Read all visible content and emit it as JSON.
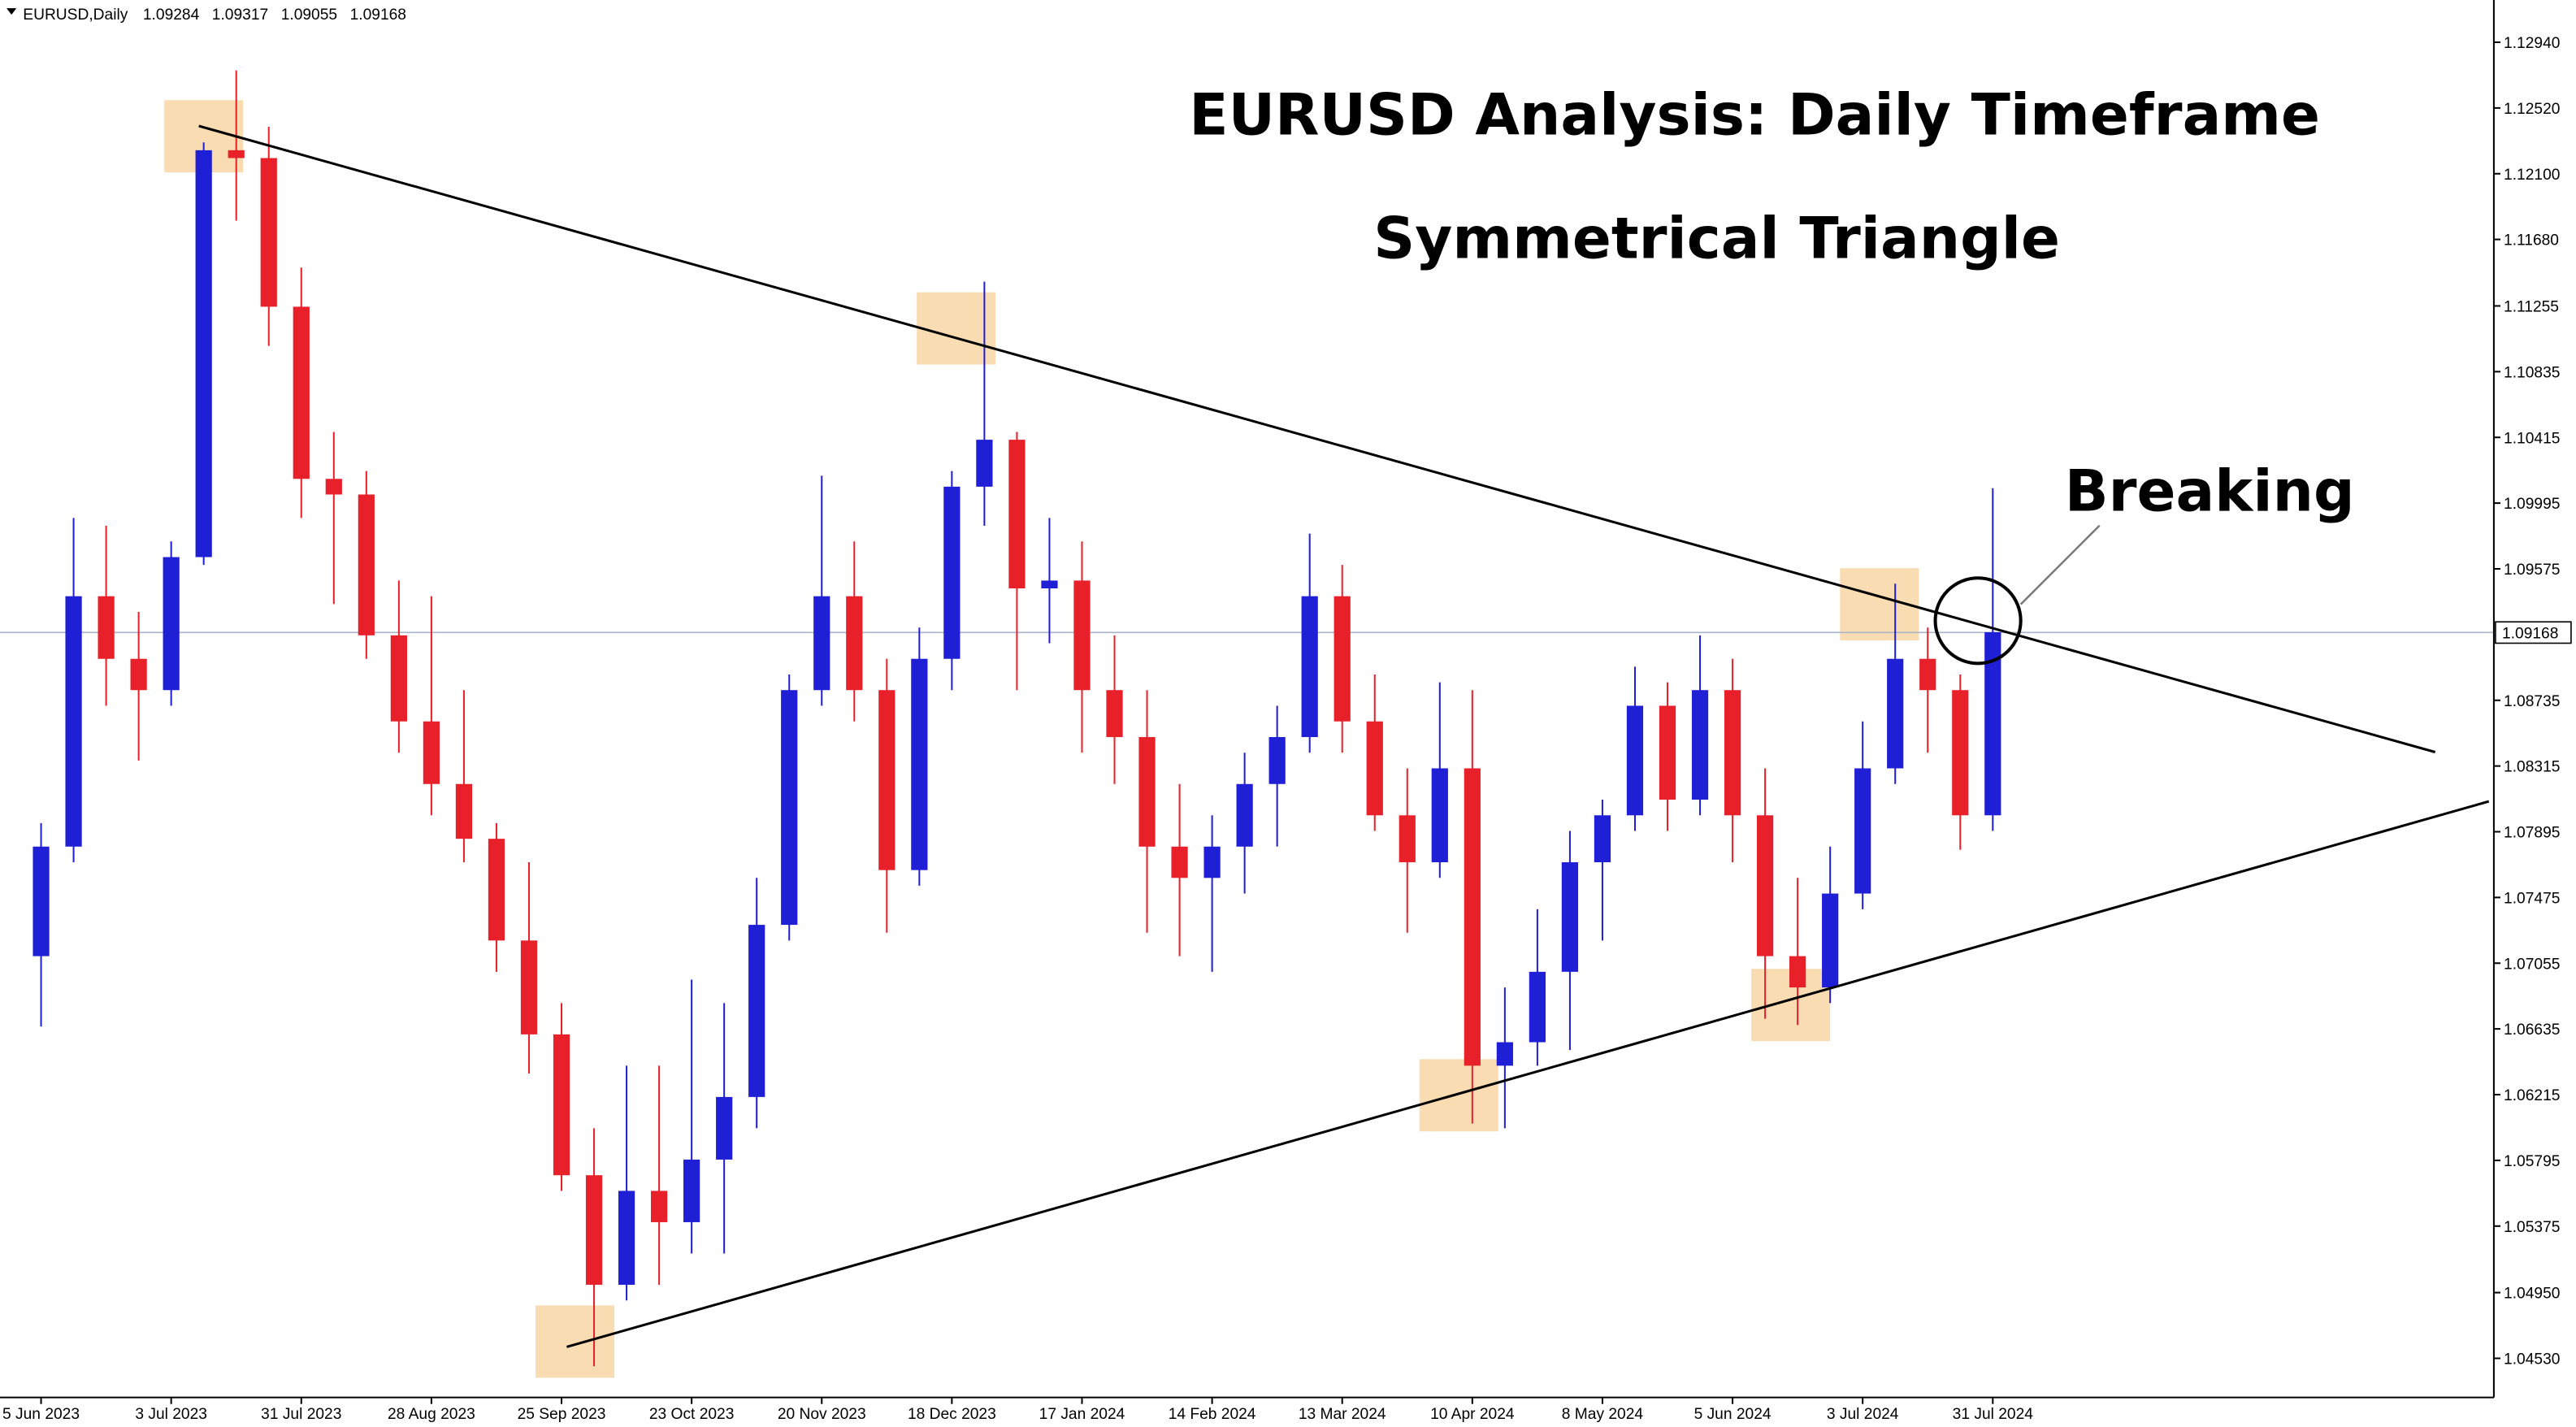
{
  "chart_data": {
    "type": "candlestick",
    "symbol": "EURUSD,Daily",
    "ohlc_header": [
      1.09284,
      1.09317,
      1.09055,
      1.09168
    ],
    "title": "EURUSD Analysis: Daily Timeframe",
    "subtitle": "Symmetrical Triangle",
    "annotation": "Breaking",
    "current_price": 1.09168,
    "bull_color": "#1f1fd6",
    "bear_color": "#e8202a",
    "categories": [
      "5 Jun 2023",
      null,
      null,
      null,
      "3 Jul 2023",
      null,
      null,
      null,
      "31 Jul 2023",
      null,
      null,
      null,
      "28 Aug 2023",
      null,
      null,
      null,
      "25 Sep 2023",
      null,
      null,
      null,
      "23 Oct 2023",
      null,
      null,
      null,
      "20 Nov 2023",
      null,
      null,
      null,
      "18 Dec 2023",
      null,
      null,
      null,
      "17 Jan 2024",
      null,
      null,
      null,
      "14 Feb 2024",
      null,
      null,
      null,
      "13 Mar 2024",
      null,
      null,
      null,
      "10 Apr 2024",
      null,
      null,
      null,
      "8 May 2024",
      null,
      null,
      null,
      "5 Jun 2024",
      null,
      null,
      null,
      "3 Jul 2024",
      null,
      null,
      null,
      "31 Jul 2024"
    ],
    "open": [
      1.071,
      1.078,
      1.094,
      1.09,
      1.088,
      1.0965,
      1.1225,
      1.122,
      1.1125,
      1.1015,
      1.1005,
      1.0915,
      1.086,
      1.082,
      1.0785,
      1.072,
      1.066,
      1.057,
      1.05,
      1.056,
      1.054,
      1.058,
      1.062,
      1.073,
      1.088,
      1.094,
      1.088,
      1.0765,
      1.09,
      1.101,
      1.104,
      1.0945,
      1.095,
      1.088,
      1.085,
      1.078,
      1.076,
      1.078,
      1.082,
      1.085,
      1.094,
      1.086,
      1.08,
      1.077,
      1.083,
      1.064,
      1.0655,
      1.07,
      1.077,
      1.08,
      1.087,
      1.081,
      1.088,
      1.08,
      1.071,
      1.069,
      1.075,
      1.083,
      1.09,
      1.088,
      1.08
    ],
    "high": [
      1.0795,
      1.099,
      1.0985,
      1.093,
      1.0975,
      1.123,
      1.1276,
      1.124,
      1.115,
      1.1045,
      1.102,
      1.095,
      1.094,
      1.088,
      1.0795,
      1.077,
      1.068,
      1.06,
      1.064,
      1.064,
      1.0695,
      1.068,
      1.076,
      1.089,
      1.1017,
      1.0975,
      1.09,
      1.092,
      1.102,
      1.1141,
      1.1045,
      1.099,
      1.0975,
      1.0915,
      1.088,
      1.082,
      1.08,
      1.084,
      1.087,
      1.098,
      1.096,
      1.089,
      1.083,
      1.0885,
      1.088,
      1.069,
      1.074,
      1.079,
      1.081,
      1.0895,
      1.0885,
      1.0915,
      1.09,
      1.083,
      1.076,
      1.078,
      1.086,
      1.0948,
      1.092,
      1.089,
      1.1009
    ],
    "low": [
      1.0665,
      1.077,
      1.087,
      1.0835,
      1.087,
      1.096,
      1.118,
      1.11,
      1.099,
      1.0935,
      1.09,
      1.084,
      1.08,
      1.077,
      1.07,
      1.0635,
      1.056,
      1.0448,
      1.049,
      1.05,
      1.052,
      1.052,
      1.06,
      1.072,
      1.087,
      1.086,
      1.0725,
      1.0755,
      1.088,
      1.0985,
      1.088,
      1.091,
      1.084,
      1.082,
      1.0725,
      1.071,
      1.07,
      1.075,
      1.078,
      1.084,
      1.084,
      1.079,
      1.0725,
      1.076,
      1.0603,
      1.06,
      1.064,
      1.065,
      1.072,
      1.079,
      1.079,
      1.08,
      1.077,
      1.067,
      1.0666,
      1.068,
      1.074,
      1.082,
      1.084,
      1.0778,
      1.079
    ],
    "close": [
      1.078,
      1.094,
      1.09,
      1.088,
      1.0965,
      1.1225,
      1.122,
      1.1125,
      1.1015,
      1.1005,
      1.0915,
      1.086,
      1.082,
      1.0785,
      1.072,
      1.066,
      1.057,
      1.05,
      1.056,
      1.054,
      1.058,
      1.062,
      1.073,
      1.088,
      1.094,
      1.088,
      1.0765,
      1.09,
      1.101,
      1.104,
      1.0945,
      1.095,
      1.088,
      1.085,
      1.078,
      1.076,
      1.078,
      1.082,
      1.085,
      1.094,
      1.086,
      1.08,
      1.077,
      1.083,
      1.064,
      1.0655,
      1.07,
      1.077,
      1.08,
      1.087,
      1.081,
      1.088,
      1.08,
      1.071,
      1.069,
      1.075,
      1.083,
      1.09,
      1.088,
      1.08,
      1.0917
    ],
    "trendlines": [
      {
        "x": [
          4.85,
          73.6
        ],
        "y": [
          1.12405,
          1.08404
        ]
      },
      {
        "x": [
          16.16,
          75.25
        ],
        "y": [
          1.04603,
          1.08089
        ]
      }
    ],
    "ylim": [
      1.0428,
      1.1321
    ],
    "yticks": [
      {
        "value": 1.0453,
        "label": "1.04530"
      },
      {
        "value": 1.0495,
        "label": "1.04950"
      },
      1.05375,
      1.05795,
      1.06215,
      1.06635,
      1.07055,
      1.07475,
      1.07895,
      1.08315,
      1.08735,
      1.09575,
      1.09995,
      1.10415,
      1.10835,
      1.11255,
      {
        "value": 1.1168,
        "label": "1.11680"
      },
      {
        "value": 1.121,
        "label": "1.12100"
      },
      {
        "value": 1.1252,
        "label": "1.12520"
      },
      {
        "value": 1.1294,
        "label": "1.12940"
      }
    ],
    "grid": false
  }
}
